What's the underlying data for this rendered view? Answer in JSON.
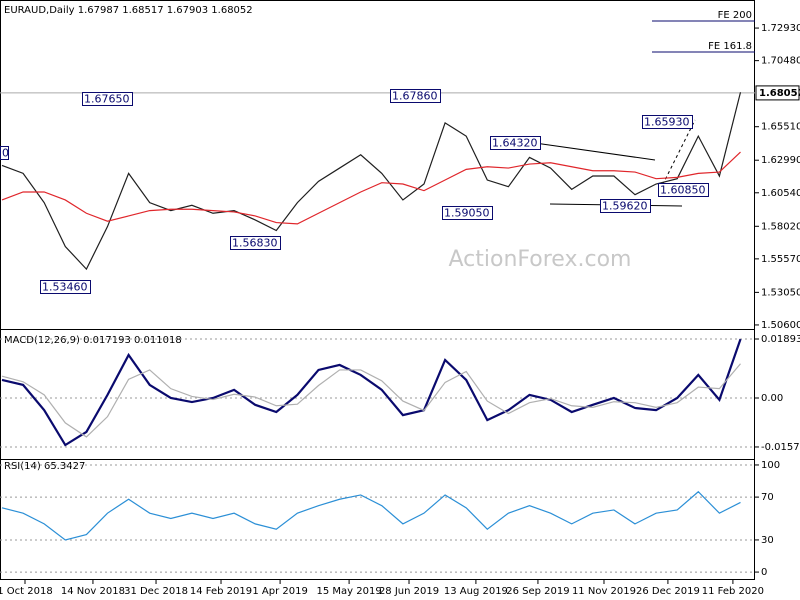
{
  "chart_data": [
    {
      "type": "line",
      "title": "EURAUD,Daily  1.67987 1.68517 1.67903 1.68052",
      "series": [
        {
          "color": "#1f1f1f",
          "values": [
            1.626,
            1.62,
            1.598,
            1.565,
            1.548,
            1.58,
            1.62,
            1.598,
            1.592,
            1.596,
            1.59,
            1.592,
            1.585,
            1.577,
            1.598,
            1.614,
            1.624,
            1.634,
            1.62,
            1.6,
            1.612,
            1.658,
            1.648,
            1.615,
            1.61,
            1.632,
            1.624,
            1.608,
            1.618,
            1.618,
            1.604,
            1.612,
            1.616,
            1.648,
            1.618,
            1.681
          ]
        },
        {
          "color": "#e0262b",
          "values": [
            1.6,
            1.606,
            1.606,
            1.6,
            1.59,
            1.584,
            1.588,
            1.592,
            1.593,
            1.593,
            1.592,
            1.591,
            1.588,
            1.583,
            1.582,
            1.59,
            1.598,
            1.606,
            1.613,
            1.612,
            1.607,
            1.615,
            1.623,
            1.625,
            1.624,
            1.627,
            1.628,
            1.625,
            1.622,
            1.622,
            1.621,
            1.616,
            1.617,
            1.62,
            1.621,
            1.636
          ]
        }
      ],
      "xlim": [
        0,
        35
      ],
      "ylim": [
        1.5037,
        1.7489
      ],
      "yticks": [
        {
          "value": 1.7293,
          "label": "1.72930"
        },
        {
          "value": 1.7048,
          "label": "1.70480"
        },
        {
          "value": 1.6551,
          "label": "1.65510"
        },
        {
          "value": 1.6299,
          "label": "1.62990"
        },
        {
          "value": 1.6054,
          "label": "1.60540"
        },
        {
          "value": 1.5802,
          "label": "1.58020"
        },
        {
          "value": 1.5557,
          "label": "1.55570"
        },
        {
          "value": 1.5305,
          "label": "1.53050"
        },
        {
          "value": 1.506,
          "label": "1.50600"
        }
      ],
      "last_price": 1.68052,
      "annotations": [
        "0",
        "1.67650",
        "1.53460",
        "1.56830",
        "1.67860",
        "1.59050",
        "1.64320",
        "1.65930",
        "1.59620",
        "1.60850"
      ],
      "fib_labels": [
        "FE 200",
        "FE 161.8"
      ],
      "watermark": "ActionForex.com"
    },
    {
      "type": "line",
      "title": "MACD(12,26,9) 0.017193 0.011018",
      "series": [
        {
          "color": "#0a0a6e",
          "values": [
            0.0058,
            0.0042,
            -0.0039,
            -0.0151,
            -0.0109,
            0.001,
            0.0138,
            0.0042,
            0.0,
            -0.0013,
            0.0,
            0.0026,
            -0.0022,
            -0.0045,
            0.001,
            0.009,
            0.0106,
            0.0074,
            0.0026,
            -0.0055,
            -0.0039,
            0.0122,
            0.0058,
            -0.0071,
            -0.0039,
            0.001,
            -0.0006,
            -0.0045,
            -0.0022,
            0.0,
            -0.0032,
            -0.0039,
            0.0,
            0.0074,
            -0.0006,
            0.0189
          ]
        },
        {
          "color": "#b0b0b0",
          "values": [
            0.007,
            0.0052,
            0.001,
            -0.008,
            -0.0125,
            -0.006,
            0.006,
            0.009,
            0.003,
            0.0005,
            -0.0005,
            0.0012,
            0.0003,
            -0.0025,
            -0.002,
            0.004,
            0.009,
            0.009,
            0.0055,
            -0.001,
            -0.004,
            0.005,
            0.0085,
            -0.001,
            -0.005,
            -0.0015,
            -0.0002,
            -0.0025,
            -0.003,
            -0.0012,
            -0.0015,
            -0.003,
            -0.0015,
            0.0035,
            0.003,
            0.011
          ]
        }
      ],
      "xlim": [
        0,
        35
      ],
      "ylim": [
        -0.01926,
        0.0215
      ],
      "yticks": [
        0.01893,
        {
          "value": 0,
          "label": "0.00"
        },
        -0.015719
      ]
    },
    {
      "type": "line",
      "title": "RSI(14) 65.3427",
      "series": [
        {
          "color": "#2b8fd6",
          "values": [
            60,
            55,
            45,
            30,
            35,
            55,
            68,
            55,
            50,
            55,
            50,
            55,
            45,
            40,
            55,
            62,
            68,
            72,
            62,
            45,
            55,
            72,
            60,
            40,
            55,
            62,
            55,
            45,
            55,
            58,
            45,
            55,
            58,
            75,
            55,
            65
          ]
        }
      ],
      "xlim": [
        0,
        35
      ],
      "ylim": [
        -7.4,
        103.7
      ],
      "yticks": [
        100,
        70,
        30,
        0
      ],
      "xticks": [
        {
          "value": 1.09,
          "label": "1 Oct 2018"
        },
        {
          "value": 4.31,
          "label": "14 Nov 2018"
        },
        {
          "value": 7.3,
          "label": "31 Dec 2018"
        },
        {
          "value": 10.38,
          "label": "14 Feb 2019"
        },
        {
          "value": 13.18,
          "label": "1 Apr 2019"
        },
        {
          "value": 16.45,
          "label": "15 May 2019"
        },
        {
          "value": 19.29,
          "label": "28 Jun 2019"
        },
        {
          "value": 22.46,
          "label": "13 Aug 2019"
        },
        {
          "value": 25.4,
          "label": "26 Sep 2019"
        },
        {
          "value": 28.53,
          "label": "11 Nov 2019"
        },
        {
          "value": 31.56,
          "label": "26 Dec 2019"
        },
        {
          "value": 34.64,
          "label": "11 Feb 2020"
        }
      ]
    }
  ]
}
